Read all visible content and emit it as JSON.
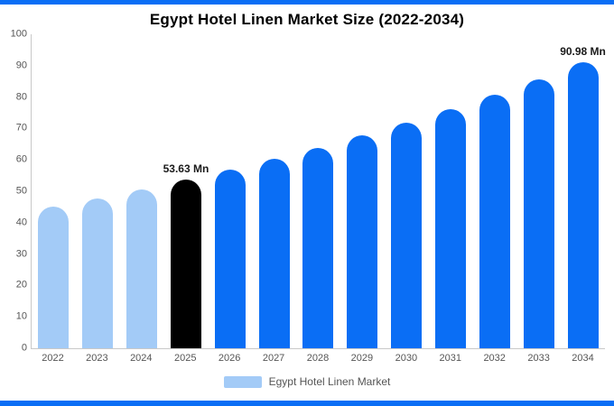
{
  "colors": {
    "light_blue": "#a3cbf7",
    "primary_blue": "#0a6ef5",
    "highlight_black": "#000000",
    "axis_gray": "#c9c9c9",
    "text_gray": "#555555",
    "strip_blue": "#0a6ef5"
  },
  "legend": {
    "label": "Egypt Hotel Linen Market"
  },
  "chart_data": {
    "type": "bar",
    "title": "Egypt Hotel Linen Market Size (2022-2034)",
    "xlabel": "",
    "ylabel": "",
    "unit": "Mn",
    "ylim": [
      0,
      100
    ],
    "ytick_step": 10,
    "grid": false,
    "legend_position": "bottom",
    "categories": [
      "2022",
      "2023",
      "2024",
      "2025",
      "2026",
      "2027",
      "2028",
      "2029",
      "2030",
      "2031",
      "2032",
      "2033",
      "2034"
    ],
    "values": [
      45.0,
      47.7,
      50.6,
      53.63,
      56.8,
      60.3,
      63.9,
      67.7,
      71.8,
      76.1,
      80.7,
      85.5,
      90.98
    ],
    "bar_color_keys": [
      "light",
      "light",
      "light",
      "highlight",
      "primary",
      "primary",
      "primary",
      "primary",
      "primary",
      "primary",
      "primary",
      "primary",
      "primary"
    ],
    "annotations": [
      {
        "category": "2025",
        "text": "53.63 Mn"
      },
      {
        "category": "2034",
        "text": "90.98 Mn"
      }
    ]
  }
}
